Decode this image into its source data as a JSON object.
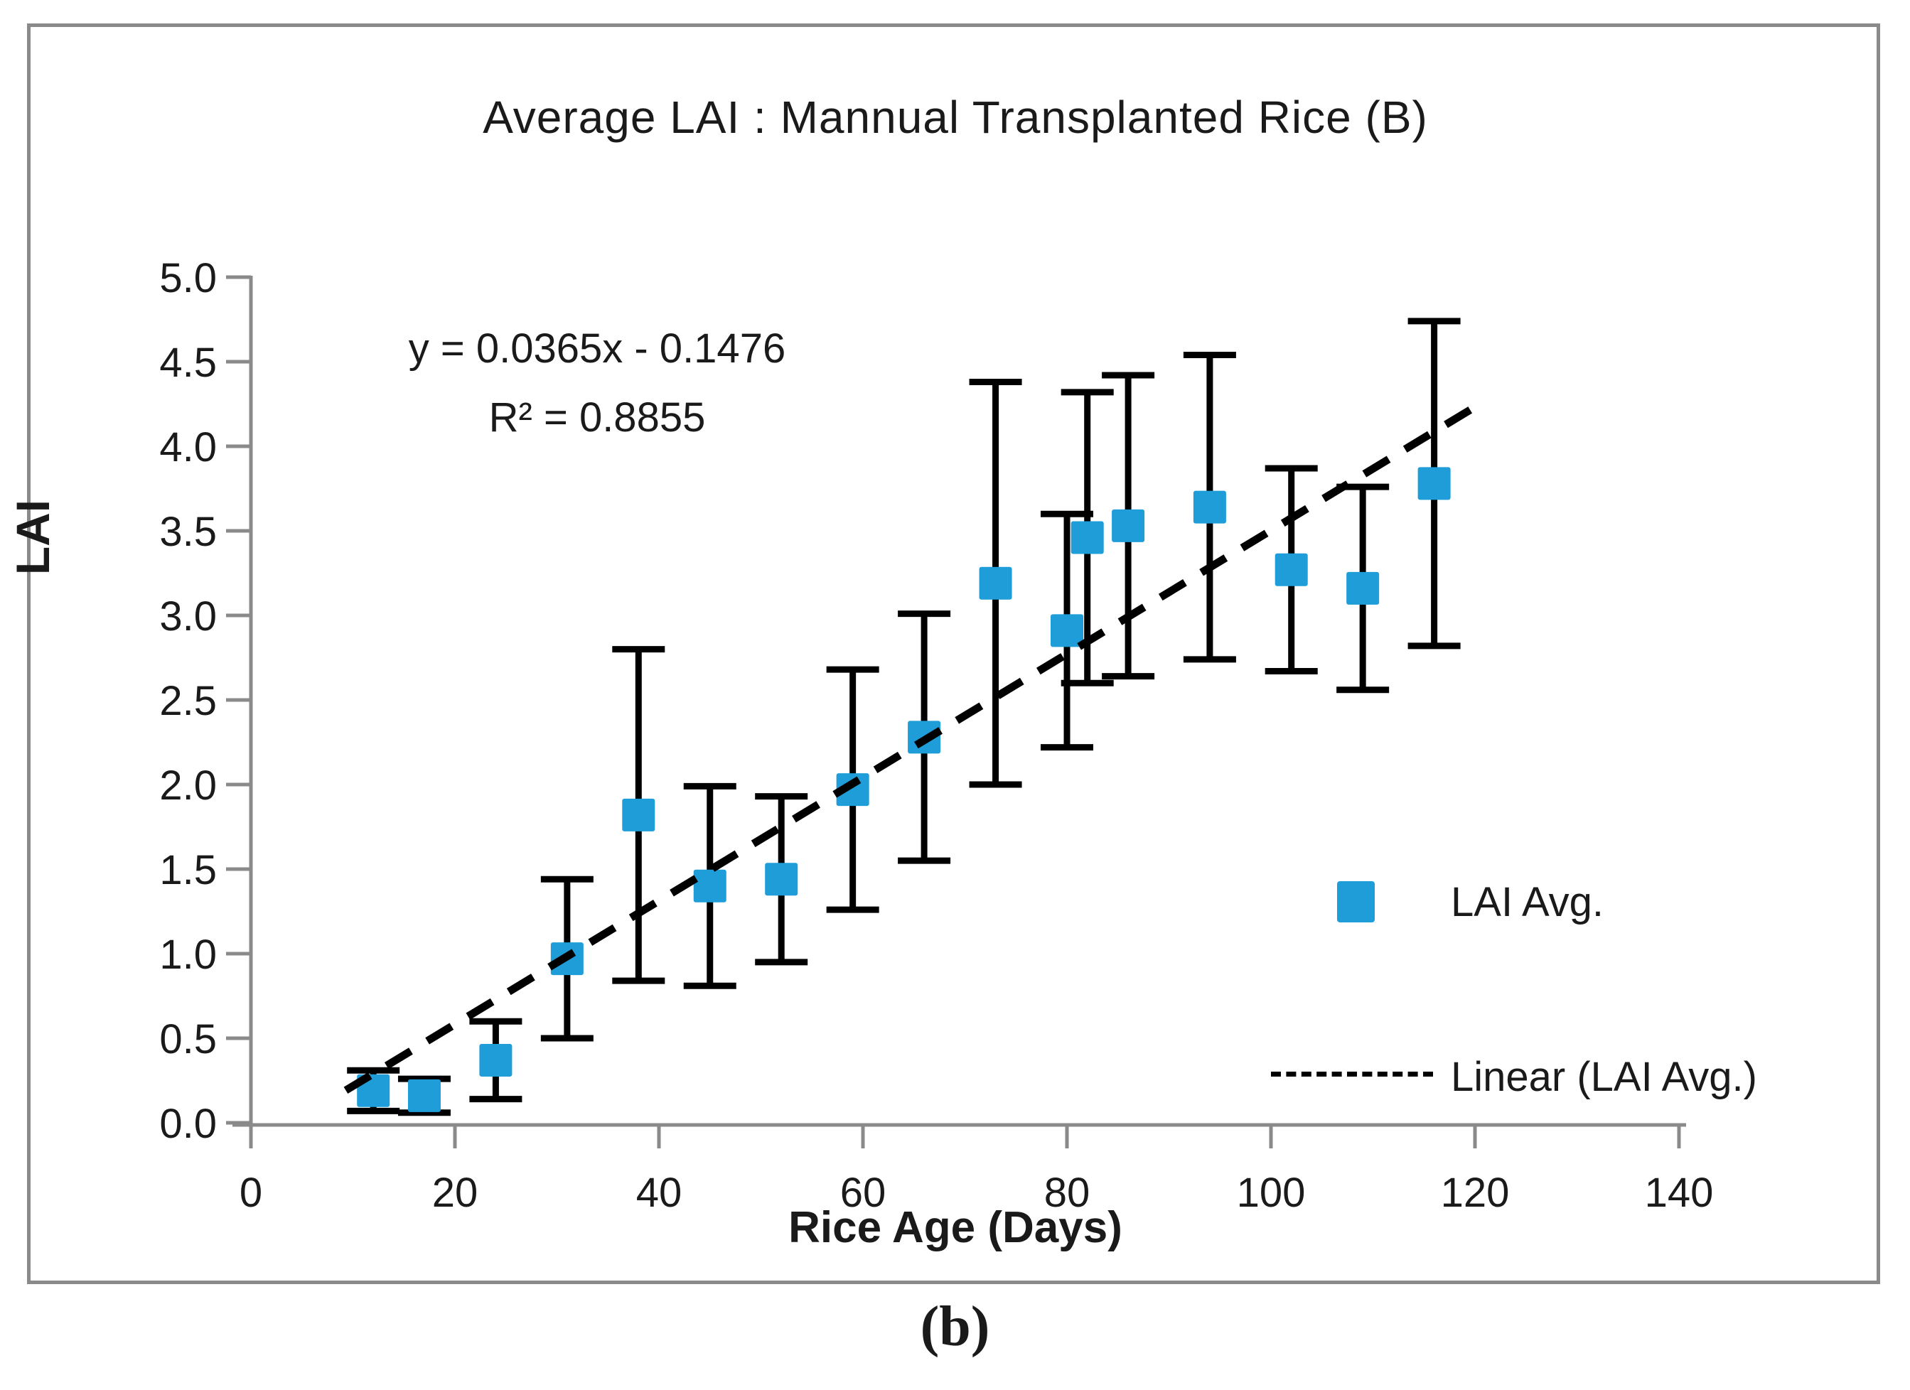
{
  "figure": {
    "caption": "(b)"
  },
  "chart_data": {
    "type": "scatter",
    "title": "Average LAI : Mannual Transplanted Rice (B)",
    "xlabel": "Rice Age (Days)",
    "ylabel": "LAI",
    "annotation": {
      "equation": "y = 0.0365x - 0.1476",
      "r_squared": "R² = 0.8855"
    },
    "xlim": [
      0,
      150
    ],
    "ylim": [
      0,
      5
    ],
    "grid": false,
    "x_ticks": [
      {
        "label": "0",
        "value": 0
      },
      {
        "label": "20",
        "value": 20
      },
      {
        "label": "40",
        "value": 40
      },
      {
        "label": "60",
        "value": 60
      },
      {
        "label": "80",
        "value": 80
      },
      {
        "label": "100",
        "value": 100
      },
      {
        "label": "120",
        "value": 120
      },
      {
        "label": "140",
        "value": 140
      }
    ],
    "y_ticks": [
      {
        "label": "0.0",
        "value": 0.0
      },
      {
        "label": "0.5",
        "value": 0.5
      },
      {
        "label": "1.0",
        "value": 1.0
      },
      {
        "label": "1.5",
        "value": 1.5
      },
      {
        "label": "2.0",
        "value": 2.0
      },
      {
        "label": "2.5",
        "value": 2.5
      },
      {
        "label": "3.0",
        "value": 3.0
      },
      {
        "label": "3.5",
        "value": 3.5
      },
      {
        "label": "4.0",
        "value": 4.0
      },
      {
        "label": "4.5",
        "value": 4.5
      },
      {
        "label": "5.0",
        "value": 5.0
      }
    ],
    "legend": {
      "position": "right-middle",
      "items": [
        {
          "label": "LAI Avg.",
          "marker": "square"
        },
        {
          "label": "Linear (LAI Avg.)",
          "marker": "dashed-line"
        }
      ]
    },
    "series": [
      {
        "name": "LAI Avg.",
        "type": "scatter-with-error-bars",
        "color": "#1F9DD8",
        "points": [
          {
            "x": 12,
            "y": 0.19,
            "err": 0.12
          },
          {
            "x": 17,
            "y": 0.16,
            "err": 0.1
          },
          {
            "x": 24,
            "y": 0.37,
            "err": 0.23
          },
          {
            "x": 31,
            "y": 0.97,
            "err": 0.47
          },
          {
            "x": 38,
            "y": 1.82,
            "err": 0.98
          },
          {
            "x": 45,
            "y": 1.4,
            "err": 0.59
          },
          {
            "x": 52,
            "y": 1.44,
            "err": 0.49
          },
          {
            "x": 59,
            "y": 1.97,
            "err": 0.71
          },
          {
            "x": 66,
            "y": 2.28,
            "err": 0.73
          },
          {
            "x": 73,
            "y": 3.19,
            "err": 1.19
          },
          {
            "x": 80,
            "y": 2.91,
            "err": 0.69
          },
          {
            "x": 82,
            "y": 3.46,
            "err": 0.86
          },
          {
            "x": 86,
            "y": 3.53,
            "err": 0.89
          },
          {
            "x": 94,
            "y": 3.64,
            "err": 0.9
          },
          {
            "x": 102,
            "y": 3.27,
            "err": 0.6
          },
          {
            "x": 109,
            "y": 3.16,
            "err": 0.6
          },
          {
            "x": 116,
            "y": 3.78,
            "err": 0.96
          }
        ]
      }
    ],
    "trendline": {
      "name": "Linear (LAI Avg.)",
      "slope": 0.0365,
      "intercept": -0.1476,
      "x_start": 9.3,
      "x_end": 120.3,
      "style": "dashed",
      "color": "#000000"
    },
    "colors": {
      "marker": "#1F9DD8",
      "error_bar": "#000000",
      "axis": "#8a8a8a",
      "text": "#1a1a1a"
    }
  }
}
